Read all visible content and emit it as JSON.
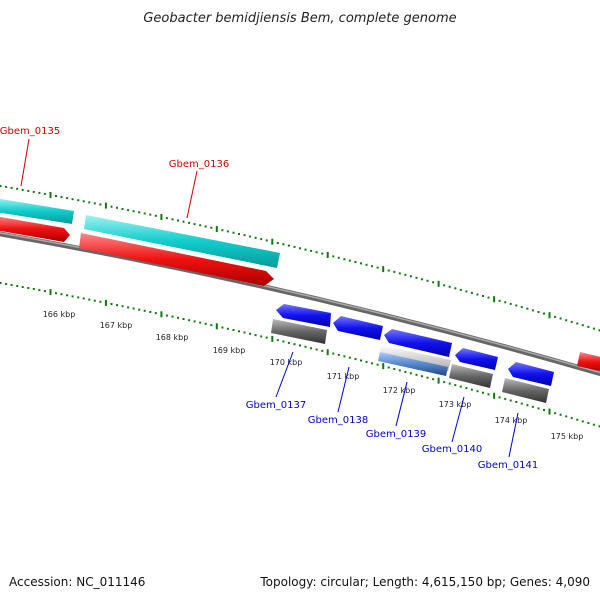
{
  "title": "Geobacter bemidjiensis Bem, complete genome",
  "footer": {
    "accession": "Accession: NC_011146",
    "summary": "Topology: circular; Length: 4,615,150 bp; Genes: 4,090"
  },
  "colors": {
    "backbone": "#777777",
    "forward_cds": "#ee1111",
    "forward_gene": "#11cccc",
    "reverse_cds": "#1111ee",
    "reverse_gene": "#666666",
    "trna": "#5588cc",
    "tick": "#117711",
    "label_forward": "#cc0000",
    "label_reverse": "#0000cc"
  },
  "forward_genes": [
    {
      "label": "Gbem_0135"
    },
    {
      "label": "Gbem_0136"
    }
  ],
  "reverse_genes": [
    {
      "label": "Gbem_0137"
    },
    {
      "label": "Gbem_0138"
    },
    {
      "label": "Gbem_0139"
    },
    {
      "label": "Gbem_0140"
    },
    {
      "label": "Gbem_0141"
    }
  ],
  "scale_labels": [
    "166 kbp",
    "167 kbp",
    "168 kbp",
    "169 kbp",
    "170 kbp",
    "171 kbp",
    "172 kbp",
    "173 kbp",
    "174 kbp",
    "175 kbp"
  ]
}
